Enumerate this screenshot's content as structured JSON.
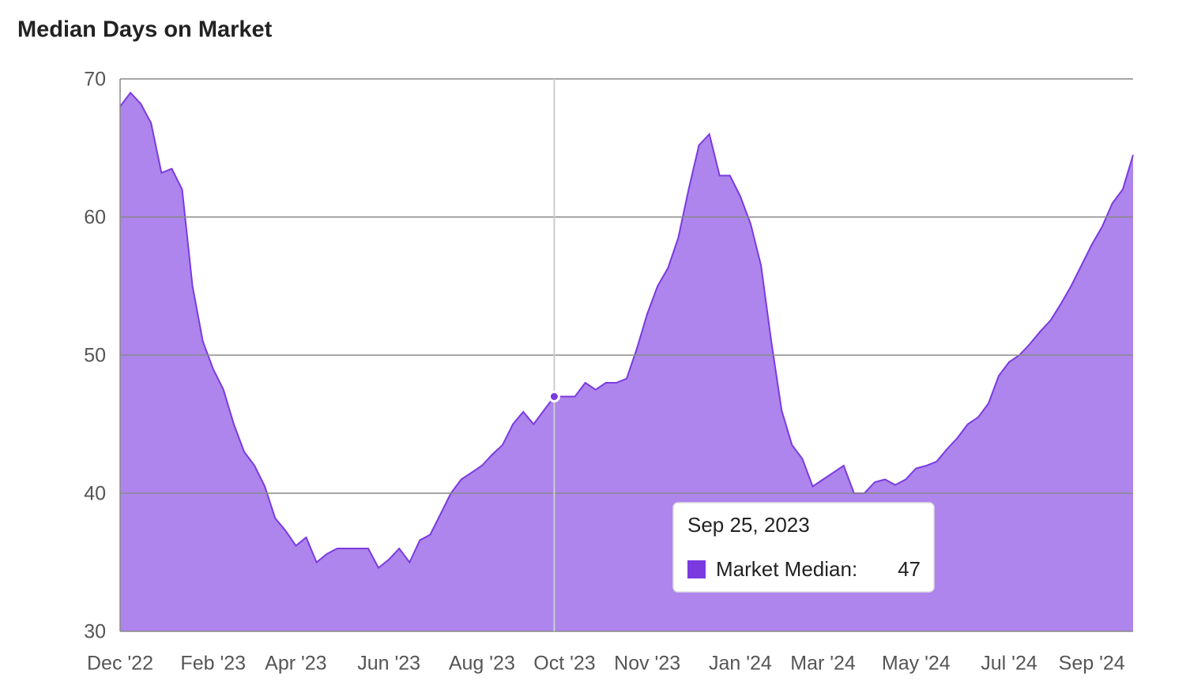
{
  "chart_data": {
    "type": "area",
    "title": "Median Days on Market",
    "categories": [
      "Dec '22",
      null,
      null,
      null,
      null,
      null,
      null,
      null,
      null,
      "Feb '23",
      null,
      null,
      null,
      null,
      null,
      null,
      null,
      "Apr '23",
      null,
      null,
      null,
      null,
      null,
      null,
      null,
      null,
      "Jun '23",
      null,
      null,
      null,
      null,
      null,
      null,
      null,
      null,
      "Aug '23",
      null,
      null,
      null,
      null,
      null,
      null,
      null,
      "Oct '23",
      null,
      null,
      null,
      null,
      null,
      null,
      null,
      "Nov '23",
      null,
      null,
      null,
      null,
      null,
      null,
      null,
      null,
      "Jan '24",
      null,
      null,
      null,
      null,
      null,
      null,
      null,
      "Mar '24",
      null,
      null,
      null,
      null,
      null,
      null,
      null,
      null,
      "May '24",
      null,
      null,
      null,
      null,
      null,
      null,
      null,
      null,
      "Jul '24",
      null,
      null,
      null,
      null,
      null,
      null,
      null,
      "Sep '24",
      null,
      null,
      null,
      null
    ],
    "values": [
      68,
      69,
      68.2,
      66.8,
      63.2,
      63.5,
      62,
      55,
      51,
      49,
      47.5,
      45,
      43,
      42,
      40.5,
      38.2,
      37.3,
      36.2,
      36.8,
      35,
      35.6,
      36,
      36,
      36,
      36,
      34.6,
      35.2,
      36,
      35,
      36.6,
      37,
      38.5,
      40,
      41,
      41.5,
      42,
      42.8,
      43.5,
      45,
      45.9,
      45,
      46,
      47,
      47,
      47,
      48,
      47.5,
      48,
      48,
      48.3,
      50.5,
      53,
      55,
      56.3,
      58.5,
      62,
      65.2,
      66,
      63,
      63,
      61.5,
      59.5,
      56.5,
      51,
      46,
      43.5,
      42.5,
      40.5,
      41,
      41.5,
      42,
      40,
      40,
      40.8,
      41,
      40.6,
      41,
      41.8,
      42,
      42.3,
      43.2,
      44,
      45,
      45.5,
      46.5,
      48.5,
      49.5,
      50,
      50.8,
      51.7,
      52.5,
      53.7,
      55,
      56.5,
      58,
      59.3,
      61,
      62,
      64.5
    ],
    "color": "#7b3ae0",
    "ylim": [
      30,
      70
    ],
    "yticks": [
      30,
      40,
      50,
      60,
      70
    ],
    "grid": true,
    "tooltip": {
      "title": "Sep 25, 2023",
      "label": "Market Median:",
      "value": 47
    }
  }
}
